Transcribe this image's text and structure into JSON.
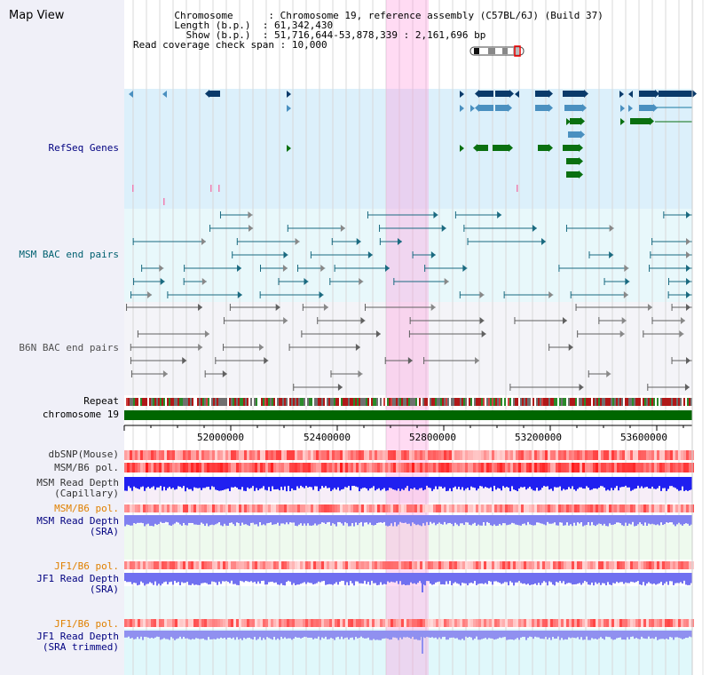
{
  "title": "Map View",
  "info": {
    "chromosome_key": "Chromosome",
    "chromosome_val": "Chromosome 19, reference assembly (C57BL/6J) (Build 37)",
    "length_key": "Length (b.p.)",
    "length_val": "61,342,430",
    "show_key": "Show (b.p.)",
    "show_val": "51,716,644-53,878,339 : 2,161,696 bp",
    "span_key": "Read coverage check span",
    "span_val": "10,000"
  },
  "tracks": {
    "refseq": "RefSeq Genes",
    "msm_bac": "MSM BAC end pairs",
    "b6n_bac": "B6N BAC end pairs",
    "repeat": "Repeat",
    "chromosome": "chromosome 19",
    "dbsnp": "dbSNP(Mouse)",
    "msm_b6_pol": "MSM/B6 pol.",
    "msm_depth_cap_1": "MSM Read Depth",
    "msm_depth_cap_2": "(Capillary)",
    "msm_b6_pol_2": "MSM/B6 pol.",
    "msm_depth_sra_1": "MSM Read Depth",
    "msm_depth_sra_2": "(SRA)",
    "jf1_b6_pol": "JF1/B6 pol.",
    "jf1_depth_sra_1": "JF1 Read Depth",
    "jf1_depth_sra_2": "(SRA)",
    "jf1_b6_pol_2": "JF1/B6 pol.",
    "jf1_depth_trim_1": "JF1 Read Depth",
    "jf1_depth_trim_2": "(SRA trimmed)"
  },
  "axis": {
    "ticks": [
      "52000000",
      "52400000",
      "52800000",
      "53200000",
      "53600000"
    ]
  },
  "colors": {
    "refseq_label": "#000080",
    "msm_label": "#006070",
    "b6n_label": "#505050",
    "pol_orange": "#e08000",
    "depth_blue": "#000080",
    "highlight": "#ffd6f0"
  }
}
